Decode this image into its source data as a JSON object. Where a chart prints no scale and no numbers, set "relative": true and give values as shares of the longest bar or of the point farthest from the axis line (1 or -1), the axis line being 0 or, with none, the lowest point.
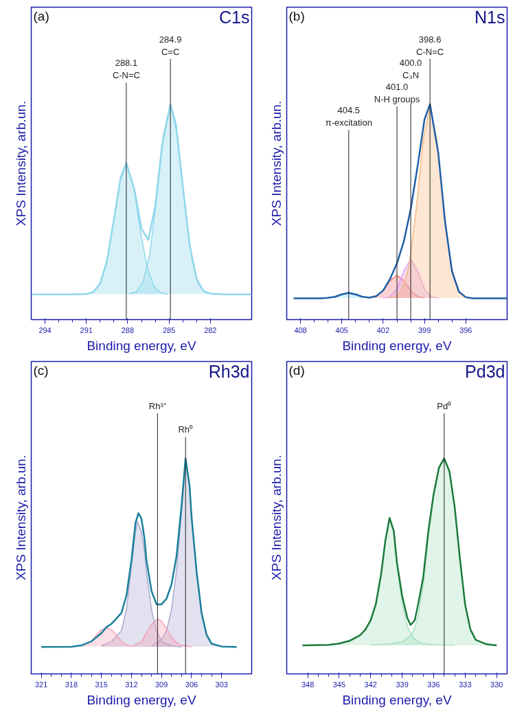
{
  "chart_data": [
    {
      "type": "area",
      "title": "C1s",
      "xlabel": "Binding energy, eV",
      "ylabel": "XPS Intensity, arb.un.",
      "annotations": [
        "(a)"
      ],
      "relative": true,
      "xlim": [
        295,
        279
      ],
      "xticks": [
        294,
        291,
        288,
        285,
        282
      ],
      "ref_lines": [
        {
          "axis": "x",
          "value": 284.9,
          "label": "284.9\nC=C",
          "color": "#222222"
        },
        {
          "axis": "x",
          "value": 288.1,
          "label": "288.1\nC-N=C",
          "color": "#222222"
        }
      ],
      "series": [
        {
          "color": "#8fd8ec",
          "x": [
            291.1,
            290.6,
            290.1,
            289.6,
            289.1,
            288.6,
            288.1,
            287.6,
            287.1,
            286.6,
            286.1,
            285.6,
            285.1
          ],
          "values": [
            0.118,
            0.125,
            0.155,
            0.245,
            0.422,
            0.629,
            0.726,
            0.629,
            0.422,
            0.245,
            0.155,
            0.125,
            0.118
          ]
        },
        {
          "color": "#8fd8ec",
          "x": [
            287.9,
            287.4,
            286.9,
            286.4,
            285.9,
            285.4,
            284.9,
            284.4,
            283.9,
            283.4,
            282.9,
            282.4,
            281.9
          ],
          "values": [
            0.119,
            0.128,
            0.172,
            0.302,
            0.559,
            0.86,
            1.0,
            0.86,
            0.559,
            0.302,
            0.172,
            0.128,
            0.119
          ]
        },
        {
          "type": "line",
          "color": "#8fd8ec",
          "x": [
            295,
            292,
            291,
            290.5,
            290,
            289.5,
            289,
            288.5,
            288.1,
            287.5,
            287,
            286.5,
            286,
            285.5,
            284.9,
            284.5,
            284,
            283.5,
            283,
            282.5,
            282,
            281,
            279
          ],
          "values": [
            0.117,
            0.117,
            0.119,
            0.128,
            0.167,
            0.274,
            0.465,
            0.662,
            0.727,
            0.6,
            0.422,
            0.37,
            0.527,
            0.811,
            1.0,
            0.907,
            0.621,
            0.344,
            0.189,
            0.133,
            0.12,
            0.117,
            0.117
          ]
        }
      ]
    },
    {
      "type": "area",
      "title": "N1s",
      "xlabel": "Binding energy, eV",
      "ylabel": "XPS Intensity, arb.un.",
      "annotations": [
        "(b)"
      ],
      "relative": true,
      "xlim": [
        409,
        393
      ],
      "xticks": [
        408,
        405,
        402,
        399,
        396
      ],
      "ref_lines": [
        {
          "axis": "x",
          "value": 398.6,
          "label": "398.6\nC-N=C",
          "color": "#222222"
        },
        {
          "axis": "x",
          "value": 400.0,
          "label": "400.0\nC₃N",
          "color": "#222222"
        },
        {
          "axis": "x",
          "value": 401.0,
          "label": "401.0\nN-H groups",
          "color": "#222222"
        },
        {
          "axis": "x",
          "value": 404.5,
          "label": "404.5\nπ-excitation",
          "color": "#222222"
        }
      ],
      "series": [
        {
          "color": "#7fd8f0",
          "x": [
            406,
            405.5,
            405,
            404.5,
            404,
            403.5,
            403
          ],
          "values": [
            0.101,
            0.106,
            0.117,
            0.124,
            0.117,
            0.106,
            0.101
          ]
        },
        {
          "color": "#f47a7a",
          "x": [
            403,
            402.5,
            402,
            401.5,
            401,
            400.5,
            400,
            399.5,
            399
          ],
          "values": [
            0.1,
            0.108,
            0.135,
            0.181,
            0.206,
            0.181,
            0.135,
            0.108,
            0.1
          ]
        },
        {
          "color": "#e0a0f0",
          "x": [
            402,
            401.5,
            401,
            400.5,
            400,
            399.5,
            399,
            398.5,
            398
          ],
          "values": [
            0.1,
            0.106,
            0.143,
            0.226,
            0.28,
            0.226,
            0.143,
            0.106,
            0.1
          ]
        },
        {
          "color": "#f8b880",
          "x": [
            401.6,
            401.1,
            400.6,
            400.1,
            399.6,
            399.1,
            398.6,
            398.1,
            397.6,
            397.1,
            396.6,
            396.1,
            395.6
          ],
          "values": [
            0.1,
            0.106,
            0.14,
            0.257,
            0.511,
            0.832,
            0.987,
            0.832,
            0.511,
            0.257,
            0.14,
            0.106,
            0.1
          ]
        },
        {
          "type": "line",
          "color": "#1f5fa8",
          "x": [
            408.5,
            406.5,
            406,
            405.5,
            405,
            404.5,
            404,
            403.5,
            403,
            402.5,
            402,
            401.5,
            401,
            400.5,
            400,
            399.5,
            399,
            398.6,
            398,
            397.5,
            397,
            396.5,
            396,
            395.5,
            394,
            393
          ],
          "values": [
            0.099,
            0.099,
            0.101,
            0.106,
            0.117,
            0.124,
            0.117,
            0.106,
            0.102,
            0.109,
            0.135,
            0.189,
            0.261,
            0.363,
            0.513,
            0.712,
            0.929,
            1.0,
            0.774,
            0.45,
            0.223,
            0.129,
            0.104,
            0.099,
            0.099,
            0.099
          ]
        }
      ]
    },
    {
      "type": "area",
      "title": "Rh3d",
      "xlabel": "Binding energy, eV",
      "ylabel": "XPS Intensity, arb.un.",
      "annotations": [
        "(c)"
      ],
      "relative": true,
      "xlim": [
        322,
        300
      ],
      "xticks": [
        321,
        318,
        315,
        312,
        309,
        306,
        303
      ],
      "ref_lines": [
        {
          "axis": "x",
          "value": 309.4,
          "label": "Rh³⁺",
          "color": "#222222"
        },
        {
          "axis": "x",
          "value": 306.6,
          "label": "Rh⁰",
          "color": "#222222"
        }
      ],
      "series": [
        {
          "color": "#a8a8d0",
          "x": [
            310,
            309,
            308.5,
            308,
            307.5,
            307,
            306.6,
            306.2,
            306,
            305.5,
            305,
            304.5,
            304,
            303
          ],
          "values": [
            0.13,
            0.16,
            0.2,
            0.3,
            0.48,
            0.75,
            0.995,
            0.87,
            0.72,
            0.47,
            0.28,
            0.18,
            0.14,
            0.127
          ]
        },
        {
          "color": "#a8a8d0",
          "x": [
            315,
            314,
            313,
            312.5,
            312,
            311.6,
            311.4,
            311,
            310.7,
            310.5,
            310,
            309.5,
            309,
            308,
            307
          ],
          "values": [
            0.13,
            0.15,
            0.2,
            0.3,
            0.5,
            0.66,
            0.705,
            0.66,
            0.57,
            0.47,
            0.3,
            0.2,
            0.15,
            0.13,
            0.125
          ]
        },
        {
          "color": "#f4a0b8",
          "x": [
            312,
            311,
            310.5,
            310,
            309.4,
            309,
            308.5,
            308,
            307.5,
            307,
            306
          ],
          "values": [
            0.127,
            0.15,
            0.19,
            0.23,
            0.254,
            0.245,
            0.21,
            0.17,
            0.145,
            0.132,
            0.126
          ]
        },
        {
          "color": "#f4a0b8",
          "x": [
            317,
            316,
            315.5,
            315,
            314.4,
            314,
            313.5,
            313,
            312.5,
            312
          ],
          "values": [
            0.13,
            0.15,
            0.18,
            0.205,
            0.212,
            0.205,
            0.18,
            0.15,
            0.135,
            0.127
          ]
        },
        {
          "type": "line",
          "color": "#1a7f9a",
          "x": [
            321,
            318,
            317,
            316,
            315,
            314.5,
            314,
            313.5,
            313,
            312.5,
            312,
            311.6,
            311.3,
            311,
            310.7,
            310.5,
            310,
            309.5,
            309,
            308.5,
            308,
            307.5,
            307,
            306.6,
            306.2,
            306,
            305.5,
            305,
            304.5,
            304,
            303,
            301.5
          ],
          "values": [
            0.125,
            0.126,
            0.132,
            0.151,
            0.189,
            0.217,
            0.232,
            0.257,
            0.283,
            0.364,
            0.527,
            0.7,
            0.746,
            0.72,
            0.629,
            0.527,
            0.385,
            0.323,
            0.323,
            0.349,
            0.415,
            0.547,
            0.781,
            1.0,
            0.873,
            0.73,
            0.476,
            0.283,
            0.181,
            0.14,
            0.127,
            0.125
          ]
        }
      ]
    },
    {
      "type": "area",
      "title": "Pd3d",
      "xlabel": "Binding energy, eV",
      "ylabel": "XPS Intensity, arb.un.",
      "annotations": [
        "(d)"
      ],
      "relative": true,
      "xlim": [
        350,
        329
      ],
      "xticks": [
        348,
        345,
        342,
        339,
        336,
        333,
        330
      ],
      "ref_lines": [
        {
          "axis": "x",
          "value": 335.0,
          "label": "Pd⁰",
          "color": "#222222"
        }
      ],
      "series": [
        {
          "color": "#a8e0c0",
          "x": [
            346,
            344,
            343,
            342,
            341.5,
            341,
            340.6,
            340.2,
            339.8,
            339.5,
            339,
            338.5,
            338,
            337.5,
            337,
            336,
            334
          ],
          "values": [
            0.133,
            0.15,
            0.175,
            0.245,
            0.32,
            0.46,
            0.615,
            0.72,
            0.655,
            0.5,
            0.33,
            0.22,
            0.17,
            0.15,
            0.14,
            0.135,
            0.133
          ]
        },
        {
          "color": "#a8e0c0",
          "x": [
            342,
            340,
            339,
            338.5,
            338,
            337.5,
            337,
            336.5,
            336,
            335.5,
            335,
            334.5,
            334,
            333.5,
            333,
            332.5,
            332,
            331,
            330
          ],
          "values": [
            0.134,
            0.14,
            0.15,
            0.165,
            0.19,
            0.26,
            0.41,
            0.64,
            0.83,
            0.955,
            0.995,
            0.94,
            0.775,
            0.535,
            0.32,
            0.206,
            0.158,
            0.138,
            0.132
          ]
        },
        {
          "type": "line",
          "color": "#1a7a3a",
          "x": [
            348.5,
            346,
            345,
            344,
            343,
            342.5,
            342,
            341.5,
            341,
            340.6,
            340.2,
            339.8,
            339.5,
            339,
            338.5,
            338.2,
            337.8,
            337.5,
            337,
            336.5,
            336,
            335.5,
            335,
            334.5,
            334,
            333.5,
            333,
            332.5,
            332,
            331,
            330
          ],
          "values": [
            0.132,
            0.135,
            0.141,
            0.154,
            0.18,
            0.206,
            0.249,
            0.326,
            0.465,
            0.62,
            0.724,
            0.663,
            0.516,
            0.361,
            0.258,
            0.227,
            0.249,
            0.318,
            0.448,
            0.665,
            0.836,
            0.957,
            1.0,
            0.94,
            0.775,
            0.535,
            0.32,
            0.206,
            0.158,
            0.138,
            0.132
          ]
        }
      ]
    }
  ]
}
